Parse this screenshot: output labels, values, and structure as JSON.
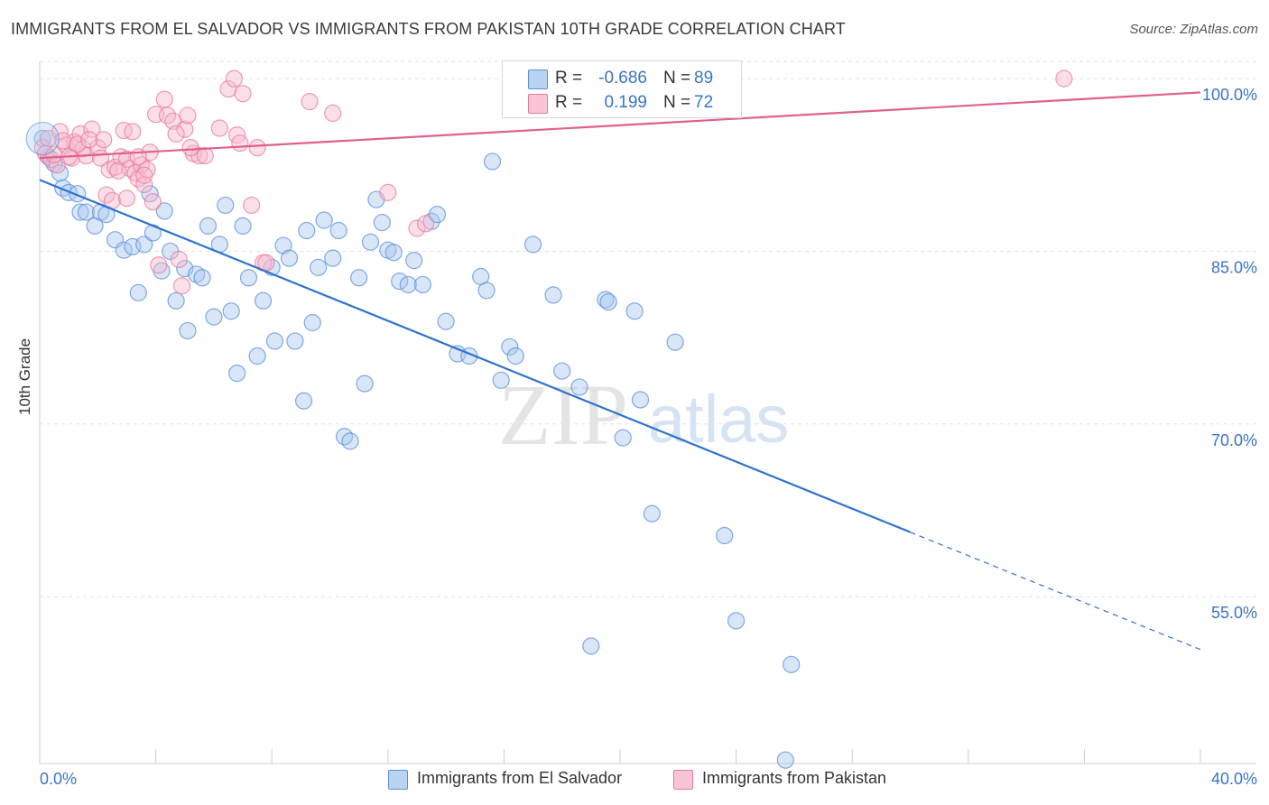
{
  "header": {
    "title": "IMMIGRANTS FROM EL SALVADOR VS IMMIGRANTS FROM PAKISTAN 10TH GRADE CORRELATION CHART",
    "source": "Source: ZipAtlas.com"
  },
  "watermark": {
    "zip": "ZIP",
    "atlas": "atlas"
  },
  "legend": {
    "rows": [
      {
        "r_label": "R =",
        "r_value": "-0.686",
        "n_label": "N =",
        "n_value": "89"
      },
      {
        "r_label": "R =",
        "r_value": "0.199",
        "n_label": "N =",
        "n_value": "72"
      }
    ]
  },
  "bottom_legend": {
    "items": [
      {
        "label": "Immigrants from El Salvador"
      },
      {
        "label": "Immigrants from Pakistan"
      }
    ]
  },
  "colors": {
    "blue_fill": "#a8c8f0",
    "blue_stroke": "#5b8fd8",
    "blue_line": "#2f72d0",
    "pink_fill": "#f7b8cc",
    "pink_stroke": "#e8799e",
    "pink_line": "#e0608a",
    "axis_label": "#3a74c8",
    "grid": "#e2e2e2"
  },
  "chart_data": {
    "type": "scatter",
    "title": "IMMIGRANTS FROM EL SALVADOR VS IMMIGRANTS FROM PAKISTAN 10TH GRADE CORRELATION CHART",
    "xlabel": "",
    "ylabel": "10th Grade",
    "xlim": [
      0,
      40
    ],
    "ylim": [
      40.5,
      101.5
    ],
    "x_tick_labels": [
      "0.0%",
      "40.0%"
    ],
    "y_ticks": [
      55,
      70,
      85,
      100
    ],
    "y_tick_labels": [
      "55.0%",
      "70.0%",
      "85.0%",
      "100.0%"
    ],
    "grid": true,
    "series": [
      {
        "name": "Immigrants from El Salvador",
        "r": -0.686,
        "n": 89,
        "trend": {
          "x0": 0,
          "y0": 91.2,
          "x1": 30,
          "y1": 60.6,
          "x_end_dashed": 40,
          "y_end_dashed": 50.4
        },
        "points": [
          [
            0.1,
            94.8
          ],
          [
            0.3,
            93.2
          ],
          [
            0.5,
            92.6
          ],
          [
            0.7,
            91.8
          ],
          [
            0.8,
            90.5
          ],
          [
            1.0,
            90.1
          ],
          [
            1.3,
            90.0
          ],
          [
            1.4,
            88.4
          ],
          [
            1.6,
            88.4
          ],
          [
            1.9,
            87.2
          ],
          [
            2.1,
            88.4
          ],
          [
            2.3,
            88.2
          ],
          [
            2.6,
            86.0
          ],
          [
            2.9,
            85.1
          ],
          [
            3.2,
            85.4
          ],
          [
            3.4,
            81.4
          ],
          [
            3.6,
            85.6
          ],
          [
            3.8,
            90.0
          ],
          [
            3.9,
            86.6
          ],
          [
            4.2,
            83.3
          ],
          [
            4.3,
            88.5
          ],
          [
            4.5,
            85.0
          ],
          [
            4.7,
            80.7
          ],
          [
            5.0,
            83.5
          ],
          [
            5.1,
            78.1
          ],
          [
            5.4,
            83.0
          ],
          [
            5.6,
            82.7
          ],
          [
            5.8,
            87.2
          ],
          [
            6.0,
            79.3
          ],
          [
            6.2,
            85.6
          ],
          [
            6.4,
            89.0
          ],
          [
            6.6,
            79.8
          ],
          [
            6.8,
            74.4
          ],
          [
            7.0,
            87.2
          ],
          [
            7.2,
            82.7
          ],
          [
            7.5,
            75.9
          ],
          [
            7.7,
            80.7
          ],
          [
            8.0,
            83.6
          ],
          [
            8.1,
            77.2
          ],
          [
            8.4,
            85.5
          ],
          [
            8.6,
            84.4
          ],
          [
            8.8,
            77.2
          ],
          [
            9.1,
            72.0
          ],
          [
            9.2,
            86.8
          ],
          [
            9.4,
            78.8
          ],
          [
            9.6,
            83.6
          ],
          [
            9.8,
            87.7
          ],
          [
            10.1,
            84.4
          ],
          [
            10.3,
            86.8
          ],
          [
            10.5,
            68.9
          ],
          [
            10.7,
            68.5
          ],
          [
            11.0,
            82.7
          ],
          [
            11.2,
            73.5
          ],
          [
            11.4,
            85.8
          ],
          [
            11.6,
            89.5
          ],
          [
            11.8,
            87.5
          ],
          [
            12.0,
            85.1
          ],
          [
            12.2,
            84.9
          ],
          [
            12.4,
            82.4
          ],
          [
            12.7,
            82.1
          ],
          [
            12.9,
            84.2
          ],
          [
            13.2,
            82.1
          ],
          [
            13.5,
            87.6
          ],
          [
            13.7,
            88.2
          ],
          [
            14.0,
            78.9
          ],
          [
            14.4,
            76.1
          ],
          [
            14.8,
            75.9
          ],
          [
            15.2,
            82.8
          ],
          [
            15.4,
            81.6
          ],
          [
            15.6,
            92.8
          ],
          [
            15.9,
            73.8
          ],
          [
            16.2,
            76.7
          ],
          [
            16.4,
            75.9
          ],
          [
            17.0,
            85.6
          ],
          [
            17.7,
            81.2
          ],
          [
            18.0,
            74.6
          ],
          [
            18.6,
            73.2
          ],
          [
            19.5,
            80.8
          ],
          [
            19.6,
            80.6
          ],
          [
            20.1,
            68.8
          ],
          [
            20.5,
            79.8
          ],
          [
            20.7,
            72.1
          ],
          [
            21.1,
            62.2
          ],
          [
            21.9,
            77.1
          ],
          [
            19.0,
            50.7
          ],
          [
            23.6,
            60.3
          ],
          [
            24.0,
            52.9
          ],
          [
            25.9,
            49.1
          ],
          [
            25.7,
            40.8
          ]
        ]
      },
      {
        "name": "Immigrants from Pakistan",
        "r": 0.199,
        "n": 72,
        "trend": {
          "x0": 0,
          "y0": 93.1,
          "x1": 40,
          "y1": 98.8
        },
        "points": [
          [
            0.1,
            94.0
          ],
          [
            0.2,
            93.5
          ],
          [
            0.3,
            94.8
          ],
          [
            0.4,
            93.0
          ],
          [
            0.6,
            92.5
          ],
          [
            0.7,
            95.4
          ],
          [
            0.9,
            94.2
          ],
          [
            1.1,
            93.1
          ],
          [
            1.2,
            94.5
          ],
          [
            1.4,
            95.2
          ],
          [
            1.5,
            93.9
          ],
          [
            1.6,
            93.3
          ],
          [
            1.8,
            95.6
          ],
          [
            2.0,
            94.0
          ],
          [
            2.2,
            94.7
          ],
          [
            2.3,
            89.9
          ],
          [
            2.4,
            92.1
          ],
          [
            2.5,
            89.4
          ],
          [
            2.6,
            92.3
          ],
          [
            2.8,
            93.2
          ],
          [
            2.9,
            95.5
          ],
          [
            3.0,
            93.0
          ],
          [
            3.1,
            92.2
          ],
          [
            3.2,
            95.4
          ],
          [
            3.3,
            91.8
          ],
          [
            3.4,
            91.3
          ],
          [
            3.5,
            92.5
          ],
          [
            3.6,
            90.8
          ],
          [
            3.7,
            92.1
          ],
          [
            3.8,
            93.6
          ],
          [
            3.9,
            89.3
          ],
          [
            4.0,
            96.9
          ],
          [
            4.1,
            83.8
          ],
          [
            4.3,
            98.2
          ],
          [
            4.4,
            96.8
          ],
          [
            4.6,
            96.3
          ],
          [
            4.8,
            84.3
          ],
          [
            4.9,
            82.0
          ],
          [
            5.0,
            95.6
          ],
          [
            5.1,
            96.8
          ],
          [
            5.3,
            93.5
          ],
          [
            5.5,
            93.3
          ],
          [
            5.7,
            93.3
          ],
          [
            6.2,
            95.7
          ],
          [
            6.5,
            99.1
          ],
          [
            6.8,
            95.1
          ],
          [
            6.9,
            94.4
          ],
          [
            6.7,
            100.0
          ],
          [
            7.0,
            98.7
          ],
          [
            7.3,
            89.0
          ],
          [
            7.5,
            94.0
          ],
          [
            7.7,
            84.0
          ],
          [
            7.8,
            84.0
          ],
          [
            9.3,
            98.0
          ],
          [
            10.1,
            97.0
          ],
          [
            12.0,
            90.1
          ],
          [
            13.0,
            87.0
          ],
          [
            13.3,
            87.4
          ],
          [
            16.5,
            100.0
          ],
          [
            35.3,
            100.0
          ],
          [
            0.5,
            93.4
          ],
          [
            0.8,
            94.6
          ],
          [
            1.0,
            93.2
          ],
          [
            1.3,
            94.3
          ],
          [
            1.7,
            94.7
          ],
          [
            2.1,
            93.1
          ],
          [
            2.7,
            92.0
          ],
          [
            3.0,
            89.6
          ],
          [
            3.4,
            93.2
          ],
          [
            3.6,
            91.6
          ],
          [
            4.7,
            95.2
          ],
          [
            5.2,
            94.0
          ]
        ]
      }
    ]
  }
}
